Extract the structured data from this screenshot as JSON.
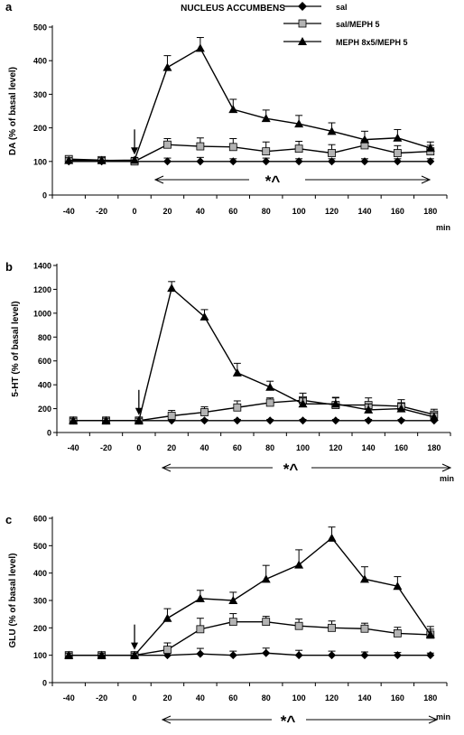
{
  "figure": {
    "header": "NUCLEUS ACCUMBENS",
    "legend": [
      {
        "name": "sal",
        "marker": "diamond",
        "color": "#000000"
      },
      {
        "name": "sal/MEPH 5",
        "marker": "square",
        "color": "#b3b3b3"
      },
      {
        "name": "MEPH 8x5/MEPH 5",
        "marker": "triangle",
        "color": "#000000"
      }
    ]
  },
  "chart_data": [
    {
      "panel": "a",
      "type": "line",
      "ylabel": "DA (% of basal level)",
      "xlabel": "min",
      "annotation": "*^",
      "x": [
        -40,
        -20,
        0,
        20,
        40,
        60,
        80,
        100,
        120,
        140,
        160,
        180
      ],
      "ylim": [
        0,
        500
      ],
      "yticks": [
        0,
        100,
        200,
        300,
        400,
        500
      ],
      "series": [
        {
          "name": "sal",
          "marker": "diamond",
          "values": [
            100,
            100,
            100,
            100,
            100,
            100,
            100,
            100,
            100,
            100,
            100,
            100
          ],
          "errors": [
            5,
            5,
            5,
            10,
            12,
            8,
            10,
            8,
            8,
            8,
            8,
            8
          ]
        },
        {
          "name": "sal/MEPH 5",
          "marker": "square",
          "values": [
            107,
            104,
            100,
            150,
            145,
            143,
            130,
            138,
            125,
            148,
            125,
            130
          ],
          "errors": [
            10,
            8,
            8,
            18,
            25,
            25,
            28,
            22,
            25,
            15,
            22,
            18
          ]
        },
        {
          "name": "MEPH 8x5/MEPH 5",
          "marker": "triangle",
          "values": [
            103,
            103,
            104,
            380,
            437,
            255,
            228,
            212,
            190,
            165,
            170,
            140
          ],
          "errors": [
            8,
            8,
            8,
            35,
            32,
            30,
            25,
            25,
            25,
            25,
            25,
            18
          ]
        }
      ]
    },
    {
      "panel": "b",
      "type": "line",
      "ylabel": "5-HT (% of basal level)",
      "xlabel": "min",
      "annotation": "*^",
      "x": [
        -40,
        -20,
        0,
        20,
        40,
        60,
        80,
        100,
        120,
        140,
        160,
        180
      ],
      "ylim": [
        0,
        1400
      ],
      "yticks": [
        0,
        200,
        400,
        600,
        800,
        1000,
        1200,
        1400
      ],
      "series": [
        {
          "name": "sal",
          "marker": "diamond",
          "values": [
            100,
            100,
            100,
            100,
            100,
            100,
            100,
            100,
            100,
            100,
            100,
            100
          ],
          "errors": [
            10,
            10,
            10,
            10,
            10,
            10,
            10,
            10,
            10,
            10,
            10,
            10
          ]
        },
        {
          "name": "sal/MEPH 5",
          "marker": "square",
          "values": [
            100,
            100,
            100,
            140,
            170,
            210,
            250,
            270,
            230,
            230,
            220,
            150
          ],
          "errors": [
            20,
            20,
            20,
            45,
            45,
            55,
            40,
            60,
            65,
            60,
            55,
            45
          ]
        },
        {
          "name": "MEPH 8x5/MEPH 5",
          "marker": "triangle",
          "values": [
            100,
            100,
            100,
            1210,
            970,
            500,
            380,
            240,
            240,
            190,
            200,
            130
          ],
          "errors": [
            20,
            20,
            20,
            55,
            60,
            80,
            50,
            50,
            50,
            50,
            45,
            35
          ]
        }
      ]
    },
    {
      "panel": "c",
      "type": "line",
      "ylabel": "GLU (% of basal level)",
      "xlabel": "min",
      "annotation": "*^",
      "x": [
        -40,
        -20,
        0,
        20,
        40,
        60,
        80,
        100,
        120,
        140,
        160,
        180
      ],
      "ylim": [
        0,
        600
      ],
      "yticks": [
        0,
        100,
        200,
        300,
        400,
        500,
        600
      ],
      "series": [
        {
          "name": "sal",
          "marker": "diamond",
          "values": [
            100,
            100,
            100,
            100,
            105,
            100,
            108,
            100,
            100,
            100,
            100,
            100
          ],
          "errors": [
            8,
            8,
            8,
            12,
            20,
            15,
            18,
            18,
            15,
            12,
            10,
            8
          ]
        },
        {
          "name": "sal/MEPH 5",
          "marker": "square",
          "values": [
            100,
            100,
            100,
            120,
            195,
            222,
            222,
            207,
            200,
            197,
            180,
            175
          ],
          "errors": [
            8,
            8,
            8,
            25,
            40,
            30,
            20,
            25,
            25,
            20,
            22,
            20
          ]
        },
        {
          "name": "MEPH 8x5/MEPH 5",
          "marker": "triangle",
          "values": [
            100,
            100,
            100,
            235,
            307,
            300,
            378,
            430,
            528,
            378,
            352,
            175
          ],
          "errors": [
            8,
            8,
            8,
            35,
            30,
            30,
            50,
            55,
            40,
            45,
            35,
            30
          ]
        }
      ]
    }
  ]
}
